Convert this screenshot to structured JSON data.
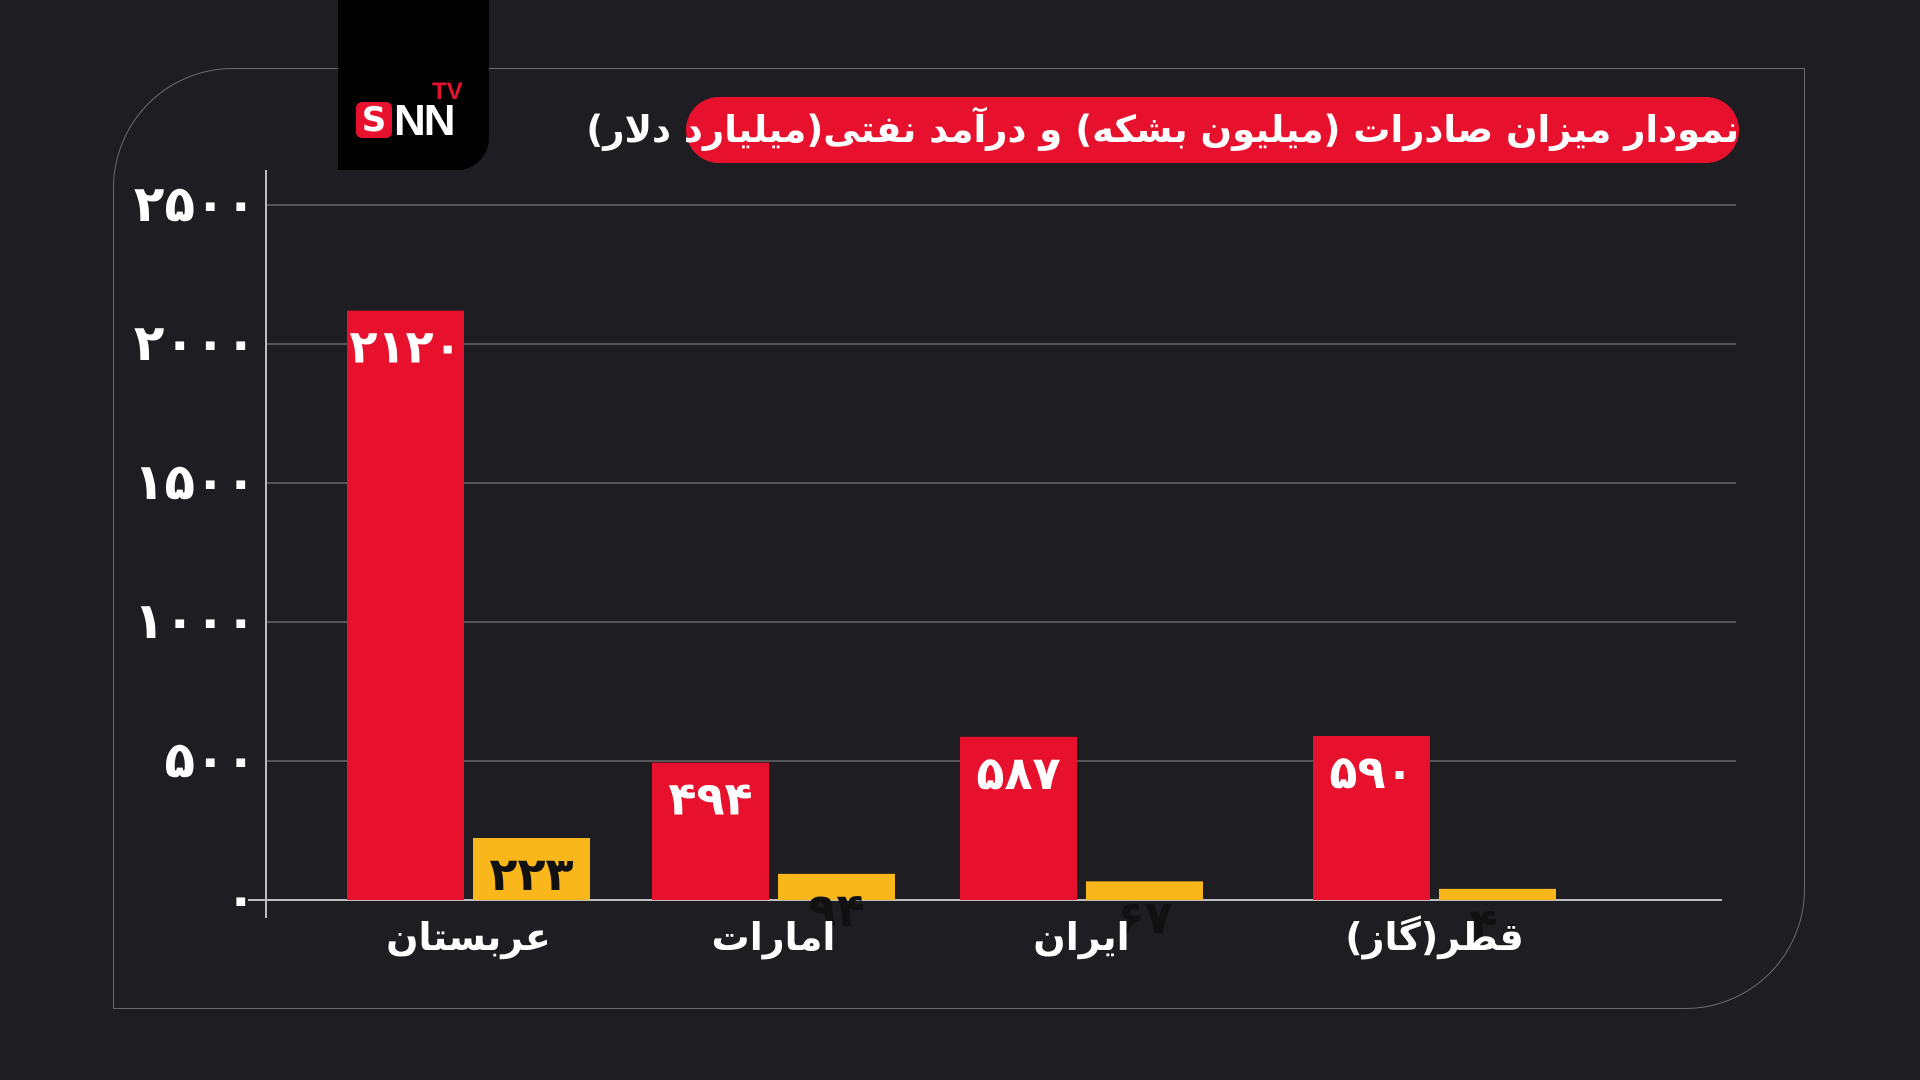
{
  "brand": {
    "s": "S",
    "nn": "NN",
    "tv": "TV"
  },
  "colors": {
    "background": "#1e1d21",
    "series1": "#e8112d",
    "series2": "#f9b71c",
    "title_bg": "#e8112d"
  },
  "chart_data": {
    "type": "bar",
    "title": "نمودار میزان صادرات (میلیون بشکه) و درآمد نفتی(میلیارد دلار)",
    "categories": [
      "عربستان",
      "امارات",
      "ایران",
      "قطر(گاز)"
    ],
    "series": [
      {
        "values": [
          2120,
          494,
          587,
          590
        ],
        "labels": [
          "۲۱۲۰",
          "۴۹۴",
          "۵۸۷",
          "۵۹۰"
        ],
        "color": "#e8112d"
      },
      {
        "values": [
          223,
          94,
          67,
          40
        ],
        "labels": [
          "۲۲۳",
          "۹۴",
          "۶۷",
          "۴۰"
        ],
        "color": "#f9b71c"
      }
    ],
    "yticks": [
      0,
      500,
      1000,
      1500,
      2000,
      2500
    ],
    "ytick_labels": [
      "۰",
      "۵۰۰",
      "۱۰۰۰",
      "۱۵۰۰",
      "۲۰۰۰",
      "۲۵۰۰"
    ],
    "ylim": [
      0,
      2500
    ],
    "grid": true,
    "legend": false
  }
}
